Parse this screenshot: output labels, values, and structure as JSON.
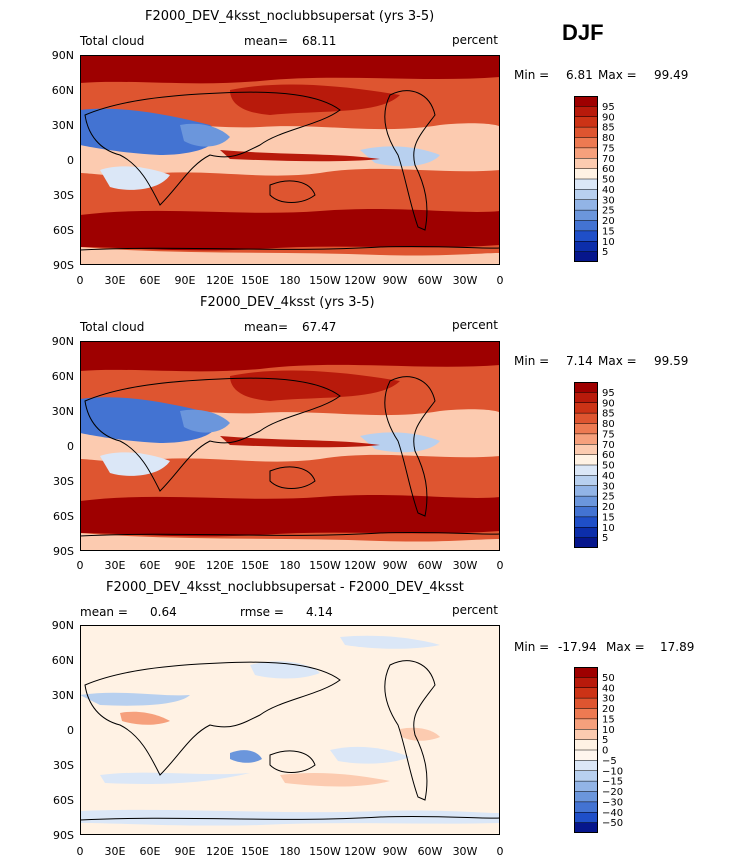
{
  "season": "DJF",
  "panels": [
    {
      "title": "F2000_DEV_4ksst_noclubbsupersat (yrs 3-5)",
      "left_label": "Total cloud",
      "mid_label": "mean=",
      "mid_value": "68.11",
      "units": "percent",
      "min_label": "Min =",
      "min_value": "6.81",
      "max_label": "Max =",
      "max_value": "99.49",
      "colorbar_labels": [
        "95",
        "90",
        "85",
        "80",
        "75",
        "70",
        "60",
        "50",
        "40",
        "30",
        "25",
        "20",
        "15",
        "10",
        "5"
      ],
      "colorbar_colors": [
        "#9e0000",
        "#b81a0b",
        "#cc3316",
        "#de5530",
        "#ed7a52",
        "#f6a07c",
        "#fccbb0",
        "#fff2e4",
        "#dbe7f7",
        "#b8d0ef",
        "#92b4e6",
        "#6b96dc",
        "#4373d2",
        "#1f4fc8",
        "#0c2eaa",
        "#06168c"
      ]
    },
    {
      "title": "F2000_DEV_4ksst (yrs 3-5)",
      "left_label": "Total cloud",
      "mid_label": "mean=",
      "mid_value": "67.47",
      "units": "percent",
      "min_label": "Min =",
      "min_value": "7.14",
      "max_label": "Max =",
      "max_value": "99.59",
      "colorbar_labels": [
        "95",
        "90",
        "85",
        "80",
        "75",
        "70",
        "60",
        "50",
        "40",
        "30",
        "25",
        "20",
        "15",
        "10",
        "5"
      ],
      "colorbar_colors": [
        "#9e0000",
        "#b81a0b",
        "#cc3316",
        "#de5530",
        "#ed7a52",
        "#f6a07c",
        "#fccbb0",
        "#fff2e4",
        "#dbe7f7",
        "#b8d0ef",
        "#92b4e6",
        "#6b96dc",
        "#4373d2",
        "#1f4fc8",
        "#0c2eaa",
        "#06168c"
      ]
    },
    {
      "title": "F2000_DEV_4ksst_noclubbsupersat - F2000_DEV_4ksst",
      "left_label": "mean =",
      "left_value": "0.64",
      "mid_label": "rmse =",
      "mid_value": "4.14",
      "units": "percent",
      "min_label": "Min =",
      "min_value": "-17.94",
      "max_label": "Max =",
      "max_value": "17.89",
      "colorbar_labels": [
        "50",
        "40",
        "30",
        "20",
        "15",
        "10",
        "5",
        "0",
        "−5",
        "−10",
        "−15",
        "−20",
        "−30",
        "−40",
        "−50"
      ],
      "colorbar_colors": [
        "#9e0000",
        "#b81a0b",
        "#cc3316",
        "#de5530",
        "#ed7a52",
        "#f6a07c",
        "#fccbb0",
        "#fff2e4",
        "#fff6ee",
        "#dbe7f7",
        "#b8d0ef",
        "#92b4e6",
        "#6b96dc",
        "#4373d2",
        "#1f4fc8",
        "#06168c"
      ]
    }
  ],
  "lat_ticks": [
    "90N",
    "60N",
    "30N",
    "0",
    "30S",
    "60S",
    "90S"
  ],
  "lon_ticks": [
    "0",
    "30E",
    "60E",
    "90E",
    "120E",
    "150E",
    "180",
    "150W",
    "120W",
    "90W",
    "60W",
    "30W",
    "0"
  ]
}
